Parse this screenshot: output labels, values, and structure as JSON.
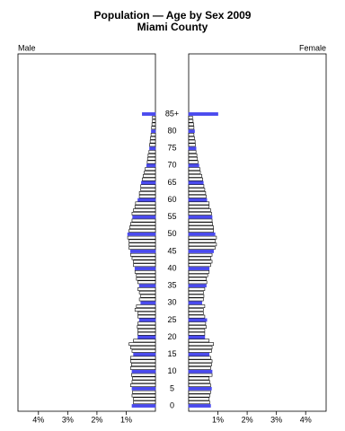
{
  "chart_data": {
    "type": "population-pyramid",
    "title": "Population — Age by Sex 2009",
    "subtitle": "Miami County",
    "categories": [
      "0",
      null,
      null,
      null,
      null,
      "5",
      null,
      null,
      null,
      null,
      "10",
      null,
      null,
      null,
      null,
      "15",
      null,
      null,
      null,
      null,
      "20",
      null,
      null,
      null,
      null,
      "25",
      null,
      null,
      null,
      null,
      "30",
      null,
      null,
      null,
      null,
      "35",
      null,
      null,
      null,
      null,
      "40",
      null,
      null,
      null,
      null,
      "45",
      null,
      null,
      null,
      null,
      "50",
      null,
      null,
      null,
      null,
      "55",
      null,
      null,
      null,
      null,
      "60",
      null,
      null,
      null,
      null,
      "65",
      null,
      null,
      null,
      null,
      "70",
      null,
      null,
      null,
      null,
      "75",
      null,
      null,
      null,
      null,
      "80",
      null,
      null,
      null,
      null,
      "85+"
    ],
    "series": [
      {
        "name": "Male",
        "color": "#4a4aee",
        "values": [
          0.8,
          0.75,
          0.75,
          0.8,
          0.78,
          0.8,
          0.85,
          0.8,
          0.78,
          0.82,
          0.8,
          0.85,
          0.82,
          0.85,
          0.85,
          0.75,
          0.8,
          0.85,
          0.9,
          0.75,
          0.6,
          0.6,
          0.6,
          0.62,
          0.6,
          0.55,
          0.6,
          0.6,
          0.7,
          0.65,
          0.5,
          0.55,
          0.5,
          0.55,
          0.6,
          0.55,
          0.6,
          0.65,
          0.65,
          0.7,
          0.7,
          0.75,
          0.75,
          0.8,
          0.85,
          0.85,
          0.9,
          0.9,
          0.9,
          0.95,
          0.95,
          0.9,
          0.88,
          0.85,
          0.8,
          0.78,
          0.8,
          0.75,
          0.7,
          0.68,
          0.6,
          0.55,
          0.55,
          0.5,
          0.5,
          0.48,
          0.45,
          0.42,
          0.38,
          0.35,
          0.3,
          0.28,
          0.27,
          0.25,
          0.22,
          0.2,
          0.2,
          0.18,
          0.17,
          0.15,
          0.14,
          0.13,
          0.12,
          0.1,
          0.1,
          0.45
        ]
      },
      {
        "name": "Female",
        "color": "#4a4aee",
        "values": [
          0.75,
          0.72,
          0.7,
          0.72,
          0.75,
          0.78,
          0.75,
          0.72,
          0.7,
          0.8,
          0.8,
          0.75,
          0.78,
          0.8,
          0.75,
          0.7,
          0.78,
          0.8,
          0.85,
          0.7,
          0.55,
          0.55,
          0.55,
          0.6,
          0.58,
          0.62,
          0.55,
          0.5,
          0.5,
          0.55,
          0.45,
          0.5,
          0.52,
          0.5,
          0.55,
          0.6,
          0.62,
          0.6,
          0.65,
          0.7,
          0.7,
          0.75,
          0.8,
          0.75,
          0.8,
          0.85,
          0.9,
          0.95,
          0.9,
          0.95,
          0.9,
          0.85,
          0.85,
          0.82,
          0.8,
          0.8,
          0.78,
          0.75,
          0.7,
          0.7,
          0.62,
          0.6,
          0.58,
          0.55,
          0.52,
          0.5,
          0.48,
          0.45,
          0.4,
          0.38,
          0.35,
          0.32,
          0.3,
          0.28,
          0.25,
          0.25,
          0.23,
          0.22,
          0.2,
          0.18,
          0.2,
          0.18,
          0.17,
          0.15,
          0.13,
          1.0
        ]
      }
    ],
    "xlim": [
      0,
      4.7
    ],
    "xticks": [
      {
        "value": 1,
        "label": "1%"
      },
      {
        "value": 2,
        "label": "2%"
      },
      {
        "value": 3,
        "label": "3%"
      },
      {
        "value": 4,
        "label": "4%"
      }
    ]
  }
}
